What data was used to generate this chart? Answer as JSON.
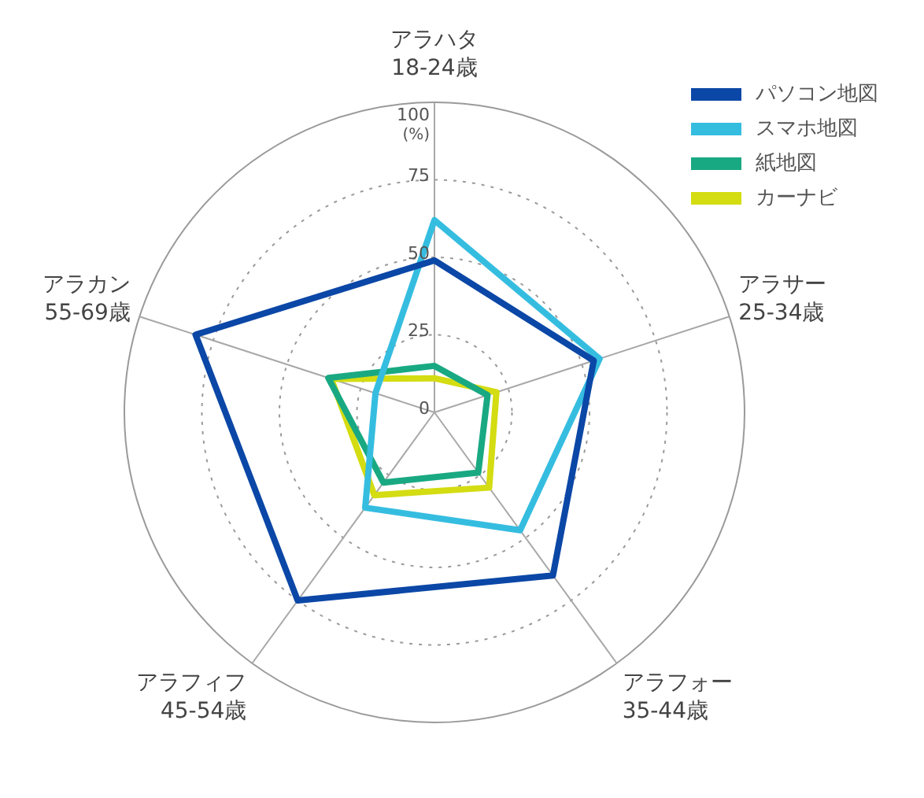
{
  "chart_data": {
    "type": "radar",
    "categories": [
      "アラハタ\n18-24歳",
      "アラサー\n25-34歳",
      "アラフォー\n35-44歳",
      "アラフィフ\n45-54歳",
      "アラカン\n55-69歳"
    ],
    "series": [
      {
        "name": "パソコン地図",
        "color": "#0b47a6",
        "values": [
          49,
          54,
          65,
          75,
          81
        ]
      },
      {
        "name": "スマホ地図",
        "color": "#35bde0",
        "values": [
          62,
          56,
          47,
          38,
          20
        ]
      },
      {
        "name": "紙地図",
        "color": "#19a982",
        "values": [
          15,
          18,
          24,
          28,
          36
        ]
      },
      {
        "name": "カーナビ",
        "color": "#d4dc12",
        "values": [
          11,
          21,
          30,
          33,
          35
        ]
      }
    ],
    "ylim": [
      0,
      100
    ],
    "yticks": [
      0,
      25,
      50,
      75,
      100
    ],
    "ylabel": "(%)",
    "grid": true,
    "legend": "top right",
    "marker": "none"
  }
}
